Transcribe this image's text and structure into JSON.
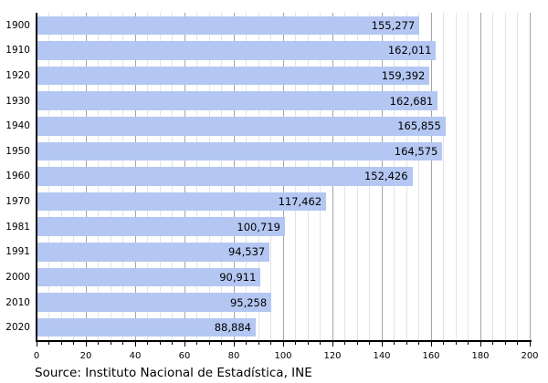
{
  "chart_data": {
    "type": "bar",
    "orientation": "horizontal",
    "title": "",
    "xlabel": "",
    "ylabel": "",
    "categories": [
      "1900",
      "1910",
      "1920",
      "1930",
      "1940",
      "1950",
      "1960",
      "1970",
      "1981",
      "1991",
      "2000",
      "2010",
      "2020"
    ],
    "values": [
      155277,
      162011,
      159392,
      162681,
      165855,
      164575,
      152426,
      117462,
      100719,
      94537,
      90911,
      95258,
      88884
    ],
    "value_labels": [
      "155,277",
      "162,011",
      "159,392",
      "162,681",
      "165,855",
      "164,575",
      "152,426",
      "117,462",
      "100,719",
      "94,537",
      "90,911",
      "95,258",
      "88,884"
    ],
    "x_axis": {
      "min": 0,
      "max": 200,
      "major_step": 20,
      "minor_step": 5,
      "tick_labels": [
        "0",
        "20",
        "40",
        "60",
        "80",
        "100",
        "120",
        "140",
        "160",
        "180",
        "200"
      ],
      "value_divisor": 1000
    },
    "grid": "vertical, minor every 5, major every 20",
    "legend": "none",
    "source": "Source: Instituto Nacional de Estadística, INE",
    "colors": {
      "bar": "#b4c7f2",
      "grid_minor": "#e3e3e3",
      "grid_major": "#a5a5a5",
      "axis": "#000000",
      "text": "#000000"
    }
  }
}
